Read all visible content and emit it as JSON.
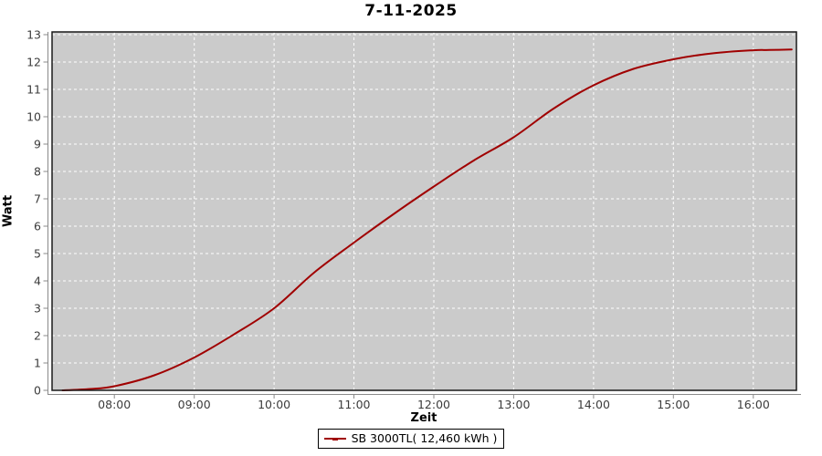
{
  "chart_data": {
    "type": "line",
    "title": "7-11-2025",
    "xlabel": "Zeit",
    "ylabel": "Watt",
    "ylim": [
      0,
      13.1
    ],
    "xlim_hours": [
      7.22,
      16.54
    ],
    "y_ticks": [
      0,
      1,
      2,
      3,
      4,
      5,
      6,
      7,
      8,
      9,
      10,
      11,
      12,
      13
    ],
    "x_tick_labels": [
      "08:00",
      "09:00",
      "10:00",
      "11:00",
      "12:00",
      "13:00",
      "14:00",
      "15:00",
      "16:00"
    ],
    "x_tick_hours": [
      8,
      9,
      10,
      11,
      12,
      13,
      14,
      15,
      16
    ],
    "grid": true,
    "legend_position": "bottom",
    "series": [
      {
        "name": "SB 3000TL( 12,460 kWh )",
        "color": "#a00000",
        "x_hours": [
          7.35,
          7.7,
          8.0,
          8.5,
          9.0,
          9.5,
          10.0,
          10.5,
          11.0,
          11.5,
          12.0,
          12.5,
          13.0,
          13.5,
          14.0,
          14.5,
          15.0,
          15.5,
          16.0,
          16.2,
          16.48
        ],
        "values": [
          0.0,
          0.05,
          0.15,
          0.55,
          1.2,
          2.05,
          3.0,
          4.3,
          5.4,
          6.45,
          7.45,
          8.4,
          9.25,
          10.3,
          11.15,
          11.75,
          12.1,
          12.32,
          12.43,
          12.44,
          12.46
        ]
      }
    ],
    "colors": {
      "plot_background": "#cbcbcb",
      "gridline": "#ffffff",
      "plot_border": "#1a1a1a",
      "axis_line": "#8a8a8a",
      "tick_label": "#3c3c3c"
    }
  }
}
